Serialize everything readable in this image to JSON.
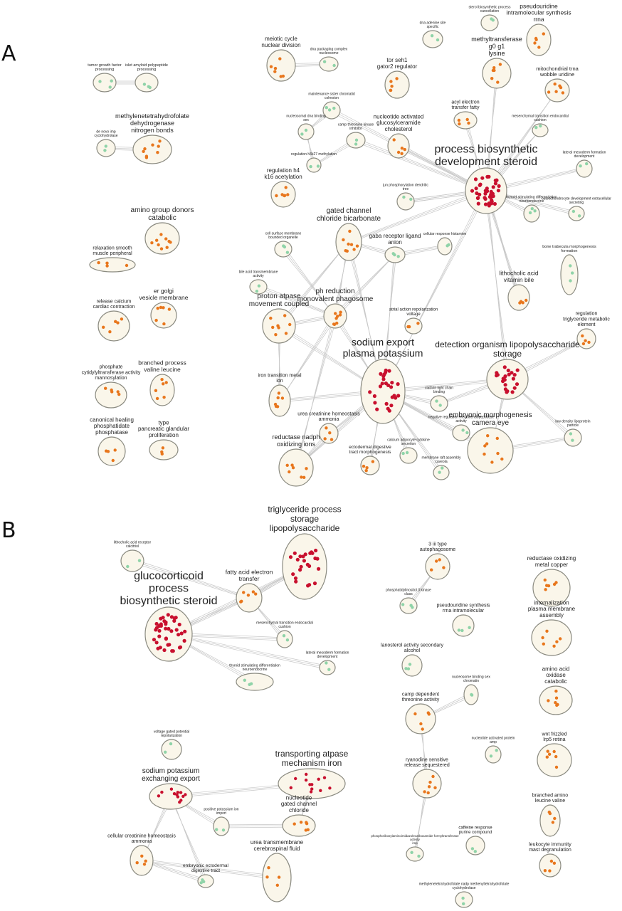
{
  "panels": [
    "A",
    "B"
  ],
  "colors": {
    "high": "#c8102e",
    "mid": "#e8761c",
    "low": "#8fd3a8"
  },
  "clusters": [
    {
      "label": "tumor growth factor processing",
      "color": "low",
      "n": 3
    },
    {
      "label": "islet amyloid polypeptide processing",
      "color": "low",
      "n": 3
    },
    {
      "label": "meiotic cycle nuclear division",
      "color": "mid",
      "n": 6
    },
    {
      "label": "dna packaging complex nucleosome",
      "color": "low",
      "n": 2
    },
    {
      "label": "sterol biosynthetic process cancellation",
      "color": "low",
      "n": 2
    },
    {
      "label": "dna adenine site specific",
      "color": "low",
      "n": 2
    },
    {
      "label": "pseudouridine intramolecular synthesis rrna",
      "color": "mid",
      "n": 5
    },
    {
      "label": "tor seh1 gator2 regulator",
      "color": "mid",
      "n": 5
    },
    {
      "label": "methyltransferase g0 g1 lysine",
      "color": "mid",
      "n": 6
    },
    {
      "label": "mitochondrial trna wobble uridine",
      "color": "mid",
      "n": 6
    },
    {
      "label": "methylenetetrahydrofolate dehydrogenase nitrogen bonds",
      "color": "mid",
      "n": 8
    },
    {
      "label": "de novo imp cyclohydrolase",
      "color": "low",
      "n": 2
    },
    {
      "label": "maintenance sister chromatid cohesion",
      "color": "low",
      "n": 3
    },
    {
      "label": "nucleosomal dna binding sex",
      "color": "low",
      "n": 2
    },
    {
      "label": "camp threonine kinase inhibitor",
      "color": "low",
      "n": 2
    },
    {
      "label": "nucleotide activated glucosylceramide cholesterol",
      "color": "mid",
      "n": 5
    },
    {
      "label": "acyl electron transfer fatty",
      "color": "mid",
      "n": 4
    },
    {
      "label": "mesenchymal transition endocardial cushion",
      "color": "low",
      "n": 2
    },
    {
      "label": "lateral mesoderm formation development",
      "color": "low",
      "n": 2
    },
    {
      "label": "regulation h3k27 methylation",
      "color": "low",
      "n": 2
    },
    {
      "label": "process biosynthetic development steroid",
      "color": "high",
      "n": 40
    },
    {
      "label": "regulation h4 k16 acetylation",
      "color": "mid",
      "n": 6
    },
    {
      "label": "jun phosphorylation dendritic tree",
      "color": "low",
      "n": 2
    },
    {
      "label": "thyroid stimulating differentiation neuroendocrine",
      "color": "low",
      "n": 3
    },
    {
      "label": "osteochondrocyte development extracellular secreting",
      "color": "low",
      "n": 2
    },
    {
      "label": "amino group donors catabolic",
      "color": "mid",
      "n": 9
    },
    {
      "label": "gated channel chloride bicarbonate",
      "color": "mid",
      "n": 8
    },
    {
      "label": "cell surface membrane bounded organelle",
      "color": "low",
      "n": 3
    },
    {
      "label": "cellular response histamine",
      "color": "low",
      "n": 2
    },
    {
      "label": "bone trabecula morphogenesis formation",
      "color": "low",
      "n": 3
    },
    {
      "label": "relaxation smooth muscle peripheral",
      "color": "mid",
      "n": 4
    },
    {
      "label": "gaba receptor ligand anion",
      "color": "low",
      "n": 3
    },
    {
      "label": "bile acid transmembrane activity",
      "color": "low",
      "n": 2
    },
    {
      "label": "lithocholic acid vitamin bile",
      "color": "mid",
      "n": 4
    },
    {
      "label": "ph reduction monovalent phagosome",
      "color": "mid",
      "n": 8
    },
    {
      "label": "release calcium cardiac contraction",
      "color": "mid",
      "n": 5
    },
    {
      "label": "er golgi vesicle membrane",
      "color": "mid",
      "n": 6
    },
    {
      "label": "atrial action repolarization voltage",
      "color": "mid",
      "n": 3
    },
    {
      "label": "proton atpase movement coupled",
      "color": "mid",
      "n": 8
    },
    {
      "label": "regulation triglyceride metabolic element",
      "color": "mid",
      "n": 4
    },
    {
      "label": "detection organism lipopolysaccharide storage",
      "color": "high",
      "n": 22
    },
    {
      "label": "sodium export plasma potassium",
      "color": "high",
      "n": 26
    },
    {
      "label": "phosphate cytidylyltransferase activity mannosylation",
      "color": "mid",
      "n": 5
    },
    {
      "label": "branched process valine leucine",
      "color": "mid",
      "n": 6
    },
    {
      "label": "iron transition metal ion",
      "color": "mid",
      "n": 6
    },
    {
      "label": "clathrin light chain binding",
      "color": "low",
      "n": 2
    },
    {
      "label": "negative regulation metalloendopeptidase activity",
      "color": "low",
      "n": 2
    },
    {
      "label": "embryonic morphogenesis camera eye",
      "color": "mid",
      "n": 8
    },
    {
      "label": "low density lipoprotein particle",
      "color": "low",
      "n": 2
    },
    {
      "label": "canonical healing phosphatidate phosphatase",
      "color": "mid",
      "n": 4
    },
    {
      "label": "type pancreatic glandular proliferation",
      "color": "mid",
      "n": 3
    },
    {
      "label": "urea creatinine homeostasis ammonia",
      "color": "mid",
      "n": 4
    },
    {
      "label": "reductase nadph oxidizing ions",
      "color": "mid",
      "n": 7
    },
    {
      "label": "ectodermal digestive tract morphogenesis",
      "color": "mid",
      "n": 4
    },
    {
      "label": "calcium adipocyte cytokine secretion",
      "color": "low",
      "n": 2
    },
    {
      "label": "membrane raft assembly caveola",
      "color": "low",
      "n": 2
    },
    {
      "label": "lithocholic acid receptor calcitriol",
      "color": "low",
      "n": 2
    },
    {
      "label": "triglyceride process storage lipopolysaccharide",
      "color": "high",
      "n": 24
    },
    {
      "label": "3 iii type autophagosome",
      "color": "mid",
      "n": 4
    },
    {
      "label": "reductase oxidizing metal copper",
      "color": "mid",
      "n": 6
    },
    {
      "label": "fatty acid electron transfer",
      "color": "mid",
      "n": 6
    },
    {
      "label": "phosphatidylinositol 3 kinase class",
      "color": "low",
      "n": 3
    },
    {
      "label": "pseudouridine synthesis rrna intramolecular",
      "color": "low",
      "n": 3
    },
    {
      "label": "internalization plasma membrane assembly",
      "color": "mid",
      "n": 6
    },
    {
      "label": "mesenchymal transition endocardial cushion",
      "color": "low",
      "n": 2
    },
    {
      "label": "glucocorticoid process biosynthetic steroid",
      "color": "high",
      "n": 40
    },
    {
      "label": "lateral mesoderm formation development",
      "color": "low",
      "n": 2
    },
    {
      "label": "thyroid stimulating differentiation neuroendocrine",
      "color": "low",
      "n": 3
    },
    {
      "label": "lanosterol activity secondary alcohol",
      "color": "low",
      "n": 3
    },
    {
      "label": "amino acid oxidase catabolic",
      "color": "mid",
      "n": 6
    },
    {
      "label": "nucleosome binding sex chromatin",
      "color": "low",
      "n": 2
    },
    {
      "label": "camp dependent threonine activity",
      "color": "mid",
      "n": 5
    },
    {
      "label": "voltage gated potential repolarization",
      "color": "low",
      "n": 2
    },
    {
      "label": "wnt frizzled lrp5 retina",
      "color": "mid",
      "n": 6
    },
    {
      "label": "nucleotide activated protein amp",
      "color": "low",
      "n": 2
    },
    {
      "label": "transporting atpase mechanism iron",
      "color": "high",
      "n": 12
    },
    {
      "label": "ryanodine sensitive release sequestered",
      "color": "mid",
      "n": 6
    },
    {
      "label": "sodium potassium exchanging export",
      "color": "high",
      "n": 12
    },
    {
      "label": "branched amino leucine valine",
      "color": "mid",
      "n": 4
    },
    {
      "label": "nucleotide gated channel chloride",
      "color": "mid",
      "n": 6
    },
    {
      "label": "positive potassium ion import",
      "color": "low",
      "n": 2
    },
    {
      "label": "caffeine response purine compound",
      "color": "low",
      "n": 2
    },
    {
      "label": "phosphoribosylaminoimidazolecarboxamide formyltransferase activity imp",
      "color": "low",
      "n": 2
    },
    {
      "label": "leukocyte immunity mast degranulation",
      "color": "mid",
      "n": 4
    },
    {
      "label": "cellular creatinine homeostasis ammonia",
      "color": "mid",
      "n": 4
    },
    {
      "label": "urea transmembrane cerebrospinal fluid",
      "color": "mid",
      "n": 4
    },
    {
      "label": "embryonic ectodermal digestive tract",
      "color": "low",
      "n": 3
    },
    {
      "label": "methylenetetrahydrofolate nadp methenyltetrahydrofolate cyclohydrolase",
      "color": "low",
      "n": 2
    }
  ]
}
